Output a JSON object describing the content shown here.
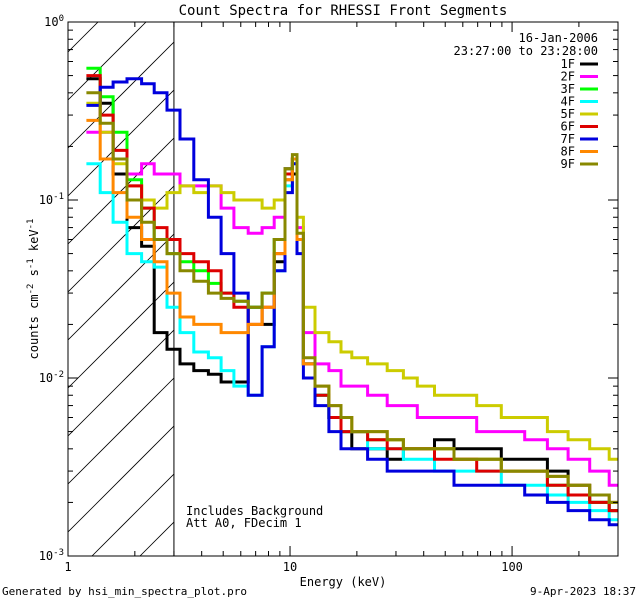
{
  "chart_data": {
    "type": "line",
    "title": "Count Spectra for RHESSI Front Segments",
    "xlabel": "Energy (keV)",
    "ylabel": "counts cm^-2 s^-1 keV^-1",
    "ylabel_parts": {
      "base": "counts cm",
      "exp1": "-2",
      "mid": " s",
      "exp2": "-1",
      "tail": " keV",
      "exp3": "-1"
    },
    "x_scale": "log",
    "y_scale": "log",
    "xlim": [
      1,
      300
    ],
    "ylim": [
      0.001,
      1
    ],
    "x_ticks": [
      {
        "value": 1,
        "label": "1"
      },
      {
        "value": 10,
        "label": "10"
      },
      {
        "value": 100,
        "label": "100"
      }
    ],
    "y_ticks": [
      {
        "value": 0.001,
        "base": "10",
        "exp": "-3"
      },
      {
        "value": 0.01,
        "base": "10",
        "exp": "-2"
      },
      {
        "value": 0.1,
        "base": "10",
        "exp": "-1"
      },
      {
        "value": 1,
        "base": "10",
        "exp": "0"
      }
    ],
    "date": "16-Jan-2006",
    "time_range": "23:27:00 to 23:28:00",
    "hatched_region": {
      "x_min": 1,
      "x_max": 3
    },
    "annotations": [
      "Includes Background",
      "Att A0, FDecim 1"
    ],
    "legend_position": "top-right",
    "series": [
      {
        "name": "1F",
        "color": "#000000",
        "x": [
          1.3,
          1.5,
          1.7,
          2.0,
          2.3,
          2.6,
          3.0,
          3.4,
          4.0,
          4.6,
          5.2,
          6.0,
          7.0,
          8.0,
          9.0,
          10.0,
          10.5,
          11.0,
          12.0,
          14.0,
          16.0,
          18.0,
          20.0,
          25.0,
          30.0,
          35.0,
          40.0,
          50.0,
          60.0,
          80.0,
          100.0,
          130.0,
          160.0,
          200.0,
          250.0,
          300.0
        ],
        "values": [
          0.48,
          0.35,
          0.14,
          0.07,
          0.055,
          0.018,
          0.0145,
          0.012,
          0.011,
          0.0105,
          0.0095,
          0.0095,
          0.025,
          0.02,
          0.045,
          0.15,
          0.14,
          0.06,
          0.012,
          0.008,
          0.006,
          0.005,
          0.004,
          0.004,
          0.0035,
          0.004,
          0.004,
          0.0045,
          0.004,
          0.004,
          0.0035,
          0.0035,
          0.003,
          0.0025,
          0.002,
          0.0018
        ]
      },
      {
        "name": "2F",
        "color": "#ff00ff",
        "x": [
          1.3,
          1.5,
          1.7,
          2.0,
          2.3,
          2.6,
          3.0,
          3.4,
          4.0,
          4.6,
          5.2,
          6.0,
          7.0,
          8.0,
          9.0,
          10.0,
          10.5,
          11.0,
          12.0,
          14.0,
          16.0,
          18.0,
          20.0,
          25.0,
          30.0,
          35.0,
          40.0,
          50.0,
          60.0,
          80.0,
          100.0,
          130.0,
          160.0,
          200.0,
          250.0,
          300.0
        ],
        "values": [
          0.24,
          0.24,
          0.17,
          0.14,
          0.16,
          0.14,
          0.14,
          0.12,
          0.12,
          0.12,
          0.09,
          0.07,
          0.065,
          0.07,
          0.08,
          0.13,
          0.17,
          0.07,
          0.018,
          0.012,
          0.011,
          0.009,
          0.009,
          0.008,
          0.007,
          0.007,
          0.006,
          0.006,
          0.006,
          0.005,
          0.005,
          0.0045,
          0.004,
          0.0035,
          0.003,
          0.0025
        ]
      },
      {
        "name": "3F",
        "color": "#00ff00",
        "x": [
          1.3,
          1.5,
          1.7,
          2.0,
          2.3,
          2.6,
          3.0,
          3.4,
          4.0,
          4.6,
          5.2,
          6.0,
          7.0,
          8.0,
          9.0,
          10.0,
          10.5,
          11.0,
          12.0,
          14.0,
          16.0,
          18.0,
          20.0,
          25.0,
          30.0,
          35.0,
          40.0,
          50.0,
          60.0,
          80.0,
          100.0,
          130.0,
          160.0,
          200.0,
          250.0,
          300.0
        ],
        "values": [
          0.55,
          0.38,
          0.24,
          0.13,
          0.09,
          0.06,
          0.05,
          0.045,
          0.04,
          0.034,
          0.03,
          0.027,
          0.025,
          0.03,
          0.06,
          0.14,
          0.17,
          0.06,
          0.012,
          0.008,
          0.006,
          0.005,
          0.005,
          0.0045,
          0.0045,
          0.004,
          0.004,
          0.004,
          0.0035,
          0.0035,
          0.003,
          0.003,
          0.0025,
          0.0022,
          0.002,
          0.0018
        ]
      },
      {
        "name": "4F",
        "color": "#00ffff",
        "x": [
          1.3,
          1.5,
          1.7,
          2.0,
          2.3,
          2.6,
          3.0,
          3.4,
          4.0,
          4.6,
          5.2,
          6.0,
          7.0,
          8.0,
          9.0,
          10.0,
          10.5,
          11.0,
          12.0,
          14.0,
          16.0,
          18.0,
          20.0,
          25.0,
          30.0,
          35.0,
          40.0,
          50.0,
          60.0,
          80.0,
          100.0,
          130.0,
          160.0,
          200.0,
          250.0,
          300.0
        ],
        "values": [
          0.16,
          0.11,
          0.075,
          0.05,
          0.045,
          0.042,
          0.025,
          0.018,
          0.014,
          0.013,
          0.011,
          0.009,
          0.008,
          0.015,
          0.04,
          0.12,
          0.16,
          0.06,
          0.012,
          0.008,
          0.006,
          0.005,
          0.005,
          0.004,
          0.004,
          0.0035,
          0.0035,
          0.003,
          0.003,
          0.003,
          0.0025,
          0.0025,
          0.0022,
          0.002,
          0.0018,
          0.0016
        ]
      },
      {
        "name": "5F",
        "color": "#cccc00",
        "x": [
          1.3,
          1.5,
          1.7,
          2.0,
          2.3,
          2.6,
          3.0,
          3.4,
          4.0,
          4.6,
          5.2,
          6.0,
          7.0,
          8.0,
          9.0,
          10.0,
          10.5,
          11.0,
          12.0,
          14.0,
          16.0,
          18.0,
          20.0,
          25.0,
          30.0,
          35.0,
          40.0,
          50.0,
          60.0,
          80.0,
          100.0,
          130.0,
          160.0,
          200.0,
          250.0,
          300.0
        ],
        "values": [
          0.35,
          0.24,
          0.16,
          0.12,
          0.1,
          0.09,
          0.11,
          0.12,
          0.11,
          0.12,
          0.11,
          0.1,
          0.1,
          0.09,
          0.1,
          0.13,
          0.17,
          0.08,
          0.025,
          0.018,
          0.016,
          0.014,
          0.013,
          0.012,
          0.011,
          0.01,
          0.009,
          0.008,
          0.008,
          0.007,
          0.006,
          0.006,
          0.005,
          0.0045,
          0.004,
          0.0035
        ]
      },
      {
        "name": "6F",
        "color": "#dd0000",
        "x": [
          1.3,
          1.5,
          1.7,
          2.0,
          2.3,
          2.6,
          3.0,
          3.4,
          4.0,
          4.6,
          5.2,
          6.0,
          7.0,
          8.0,
          9.0,
          10.0,
          10.5,
          11.0,
          12.0,
          14.0,
          16.0,
          18.0,
          20.0,
          25.0,
          30.0,
          35.0,
          40.0,
          50.0,
          60.0,
          80.0,
          100.0,
          130.0,
          160.0,
          200.0,
          250.0,
          300.0
        ],
        "values": [
          0.5,
          0.3,
          0.19,
          0.12,
          0.09,
          0.07,
          0.06,
          0.05,
          0.045,
          0.04,
          0.03,
          0.025,
          0.02,
          0.025,
          0.05,
          0.14,
          0.17,
          0.06,
          0.012,
          0.008,
          0.006,
          0.005,
          0.005,
          0.0045,
          0.004,
          0.004,
          0.004,
          0.0035,
          0.0035,
          0.003,
          0.003,
          0.003,
          0.0025,
          0.0022,
          0.002,
          0.0018
        ]
      },
      {
        "name": "7F",
        "color": "#0000dd",
        "x": [
          1.3,
          1.5,
          1.7,
          2.0,
          2.3,
          2.6,
          3.0,
          3.4,
          4.0,
          4.6,
          5.2,
          6.0,
          7.0,
          8.0,
          9.0,
          10.0,
          10.5,
          11.0,
          12.0,
          14.0,
          16.0,
          18.0,
          20.0,
          25.0,
          30.0,
          35.0,
          40.0,
          50.0,
          60.0,
          80.0,
          100.0,
          130.0,
          160.0,
          200.0,
          250.0,
          300.0
        ],
        "values": [
          0.34,
          0.43,
          0.46,
          0.48,
          0.45,
          0.4,
          0.32,
          0.22,
          0.13,
          0.08,
          0.05,
          0.03,
          0.008,
          0.015,
          0.04,
          0.11,
          0.16,
          0.05,
          0.01,
          0.007,
          0.005,
          0.004,
          0.004,
          0.0035,
          0.003,
          0.003,
          0.003,
          0.003,
          0.0025,
          0.0025,
          0.0025,
          0.0022,
          0.002,
          0.0018,
          0.0016,
          0.0015
        ]
      },
      {
        "name": "8F",
        "color": "#ff8800",
        "x": [
          1.3,
          1.5,
          1.7,
          2.0,
          2.3,
          2.6,
          3.0,
          3.4,
          4.0,
          4.6,
          5.2,
          6.0,
          7.0,
          8.0,
          9.0,
          10.0,
          10.5,
          11.0,
          12.0,
          14.0,
          16.0,
          18.0,
          20.0,
          25.0,
          30.0,
          35.0,
          40.0,
          50.0,
          60.0,
          80.0,
          100.0,
          130.0,
          160.0,
          200.0,
          250.0,
          300.0
        ],
        "values": [
          0.28,
          0.17,
          0.11,
          0.08,
          0.06,
          0.045,
          0.03,
          0.022,
          0.02,
          0.02,
          0.018,
          0.018,
          0.02,
          0.025,
          0.05,
          0.13,
          0.17,
          0.06,
          0.012,
          0.009,
          0.007,
          0.006,
          0.005,
          0.005,
          0.0045,
          0.004,
          0.004,
          0.004,
          0.0035,
          0.0035,
          0.003,
          0.003,
          0.0028,
          0.0025,
          0.0022,
          0.002
        ]
      },
      {
        "name": "9F",
        "color": "#888800",
        "x": [
          1.3,
          1.5,
          1.7,
          2.0,
          2.3,
          2.6,
          3.0,
          3.4,
          4.0,
          4.6,
          5.2,
          6.0,
          7.0,
          8.0,
          9.0,
          10.0,
          10.5,
          11.0,
          12.0,
          14.0,
          16.0,
          18.0,
          20.0,
          25.0,
          30.0,
          35.0,
          40.0,
          50.0,
          60.0,
          80.0,
          100.0,
          130.0,
          160.0,
          200.0,
          250.0,
          300.0
        ],
        "values": [
          0.4,
          0.27,
          0.17,
          0.1,
          0.075,
          0.06,
          0.05,
          0.04,
          0.035,
          0.03,
          0.028,
          0.027,
          0.025,
          0.03,
          0.06,
          0.15,
          0.18,
          0.065,
          0.013,
          0.009,
          0.007,
          0.006,
          0.005,
          0.005,
          0.0045,
          0.004,
          0.004,
          0.004,
          0.0035,
          0.0035,
          0.003,
          0.003,
          0.0028,
          0.0025,
          0.0022,
          0.002
        ]
      }
    ]
  },
  "footer": {
    "generated_by": "Generated by hsi_min_spectra_plot.pro",
    "timestamp": "9-Apr-2023 18:37"
  }
}
